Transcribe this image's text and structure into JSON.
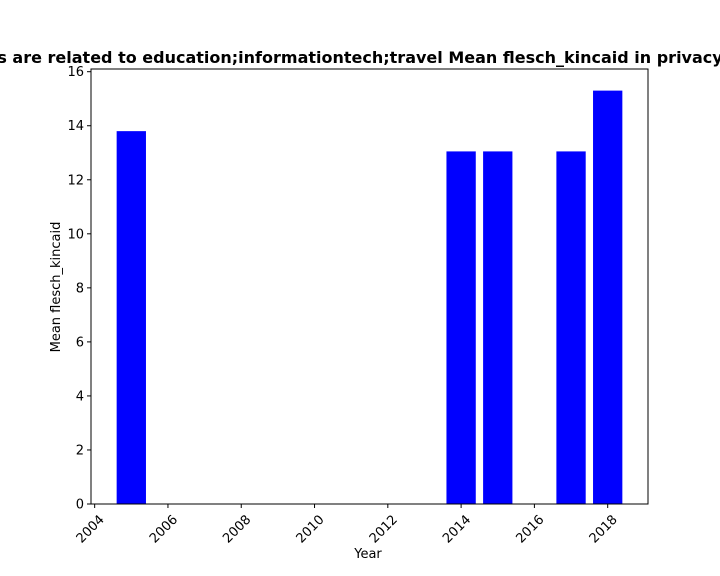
{
  "chart_data": {
    "type": "bar",
    "title": "Mean flesch_kincaid in privacy policies for apps that are related to education;informationtech;travel",
    "title_visible": "s are related to education;informationtech;travel Mean flesch_kincaid in privacy",
    "xlabel": "Year",
    "ylabel": "Mean flesch_kincaid",
    "x": [
      2005,
      2014,
      2015,
      2017,
      2018
    ],
    "values": [
      13.8,
      13.05,
      13.05,
      13.05,
      15.3
    ],
    "xlim": [
      2003.9,
      2019.1
    ],
    "ylim": [
      0,
      16.1
    ],
    "xticks": [
      "2004",
      "2006",
      "2008",
      "2010",
      "2012",
      "2014",
      "2016",
      "2018"
    ],
    "yticks": [
      "0",
      "2",
      "4",
      "6",
      "8",
      "10",
      "12",
      "14",
      "16"
    ],
    "bar_color": "#0000ff",
    "grid": false,
    "legend": "none"
  }
}
